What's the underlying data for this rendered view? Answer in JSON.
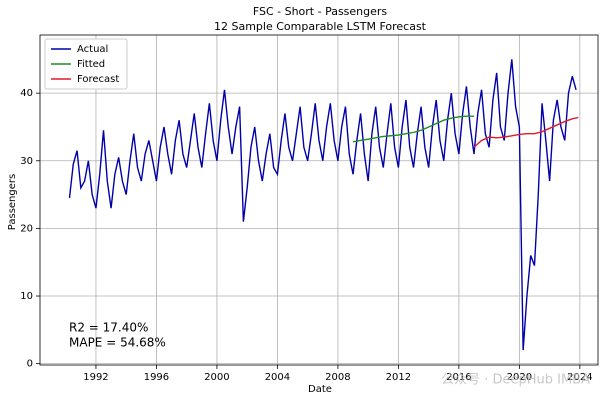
{
  "chart_data": {
    "type": "line",
    "title": "FSC - Short - Passengers",
    "subtitle": "12 Sample Comparable LSTM Forecast",
    "x_label": "Date",
    "y_label": "Passengers",
    "xlim": [
      1988.3,
      2025.2
    ],
    "ylim": [
      -0.2,
      48.6
    ],
    "xticks": [
      1992,
      1996,
      2000,
      2004,
      2008,
      2012,
      2016,
      2020,
      2024
    ],
    "yticks": [
      0,
      10,
      20,
      30,
      40
    ],
    "grid": true,
    "legend": "upper left",
    "annotations": [
      "R2 = 17.40%",
      "MAPE = 54.68%"
    ],
    "watermark": "公众号 · DeepHub IMBA",
    "series": [
      {
        "name": "Actual",
        "color": "#0000aa",
        "x": [
          1990.25,
          1990.5,
          1990.75,
          1991,
          1991.25,
          1991.5,
          1991.75,
          1992,
          1992.25,
          1992.5,
          1992.75,
          1993,
          1993.25,
          1993.5,
          1993.75,
          1994,
          1994.25,
          1994.5,
          1994.75,
          1995,
          1995.25,
          1995.5,
          1995.75,
          1996,
          1996.25,
          1996.5,
          1996.75,
          1997,
          1997.25,
          1997.5,
          1997.75,
          1998,
          1998.25,
          1998.5,
          1998.75,
          1999,
          1999.25,
          1999.5,
          1999.75,
          2000,
          2000.25,
          2000.5,
          2000.75,
          2001,
          2001.25,
          2001.5,
          2001.75,
          2002,
          2002.25,
          2002.5,
          2002.75,
          2003,
          2003.25,
          2003.5,
          2003.75,
          2004,
          2004.25,
          2004.5,
          2004.75,
          2005,
          2005.25,
          2005.5,
          2005.75,
          2006,
          2006.25,
          2006.5,
          2006.75,
          2007,
          2007.25,
          2007.5,
          2007.75,
          2008,
          2008.25,
          2008.5,
          2008.75,
          2009,
          2009.25,
          2009.5,
          2009.75,
          2010,
          2010.25,
          2010.5,
          2010.75,
          2011,
          2011.25,
          2011.5,
          2011.75,
          2012,
          2012.25,
          2012.5,
          2012.75,
          2013,
          2013.25,
          2013.5,
          2013.75,
          2014,
          2014.25,
          2014.5,
          2014.75,
          2015,
          2015.25,
          2015.5,
          2015.75,
          2016,
          2016.25,
          2016.5,
          2016.75,
          2017,
          2017.25,
          2017.5,
          2017.75,
          2018,
          2018.25,
          2018.5,
          2018.75,
          2019,
          2019.25,
          2019.5,
          2019.75,
          2020,
          2020.25,
          2020.5,
          2020.75,
          2021,
          2021.25,
          2021.5,
          2021.75,
          2022,
          2022.25,
          2022.5,
          2022.75,
          2023,
          2023.25,
          2023.5,
          2023.75
        ],
        "values": [
          24.5,
          29.5,
          31.5,
          26,
          27,
          30,
          25,
          23,
          28,
          34.5,
          27,
          23,
          28,
          30.5,
          27,
          25,
          30,
          34,
          29,
          27,
          31,
          33,
          30,
          27,
          32,
          35,
          31,
          28,
          33,
          36,
          31,
          29,
          33,
          37,
          32,
          29,
          34,
          38.5,
          33,
          30,
          36,
          40.5,
          35,
          31,
          35,
          38,
          21,
          26,
          32,
          35,
          30,
          27,
          31,
          34,
          29,
          28,
          33,
          37,
          32,
          30,
          34,
          38,
          32,
          30,
          34,
          38.5,
          33,
          30,
          35,
          38.5,
          33,
          30,
          35,
          38,
          31,
          28,
          33,
          37,
          31,
          27,
          34,
          38,
          32,
          29,
          34,
          38.5,
          32,
          29,
          35,
          39,
          32,
          29,
          34,
          38,
          32,
          29,
          35,
          39,
          33,
          30,
          36,
          40,
          34,
          31,
          37,
          41,
          35,
          31,
          37,
          40.5,
          34,
          32,
          39,
          43,
          35,
          33,
          40,
          45,
          38,
          35,
          2,
          10,
          16,
          14.5,
          25,
          38.5,
          33,
          27,
          36,
          39,
          35,
          33,
          40,
          42.5,
          40.5
        ]
      },
      {
        "name": "Fitted",
        "color": "#228b22",
        "x": [
          2009,
          2009.5,
          2010,
          2010.5,
          2011,
          2011.5,
          2012,
          2012.5,
          2013,
          2013.5,
          2014,
          2014.5,
          2015,
          2015.5,
          2016,
          2016.5,
          2017
        ],
        "values": [
          32.8,
          33,
          33.2,
          33.4,
          33.6,
          33.7,
          33.8,
          34,
          34.2,
          34.5,
          35,
          35.5,
          36,
          36.3,
          36.5,
          36.6,
          36.6
        ]
      },
      {
        "name": "Forecast",
        "color": "#dd1c2c",
        "x": [
          2017,
          2017.5,
          2018,
          2018.5,
          2019,
          2019.5,
          2020,
          2020.5,
          2021,
          2021.5,
          2022,
          2022.5,
          2023,
          2023.5,
          2023.9
        ],
        "values": [
          32,
          33,
          33.5,
          33.4,
          33.5,
          33.7,
          33.9,
          34,
          34,
          34.3,
          34.8,
          35.3,
          35.8,
          36.2,
          36.4
        ]
      }
    ]
  }
}
